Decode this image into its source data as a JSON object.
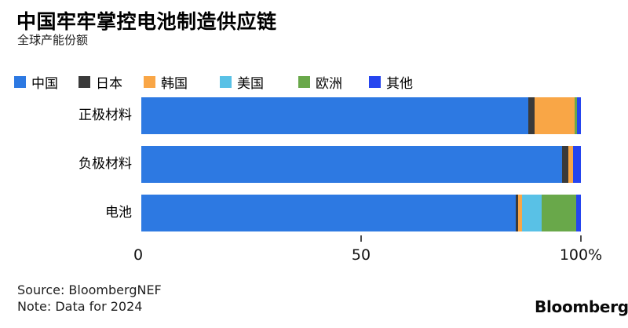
{
  "header": {
    "title": "中国牢牢掌控电池制造供应链",
    "subtitle": "全球产能份额"
  },
  "chart_data": {
    "type": "bar",
    "orientation": "horizontal",
    "stacked": true,
    "title": "中国牢牢掌控电池制造供应链",
    "subtitle": "全球产能份额",
    "categories": [
      "正极材料",
      "负极材料",
      "电池"
    ],
    "series": [
      {
        "name": "中国",
        "color": "#2d79e2",
        "values": [
          88.0,
          95.8,
          85.2
        ]
      },
      {
        "name": "日本",
        "color": "#3a3a3a",
        "values": [
          1.4,
          1.3,
          0.5
        ]
      },
      {
        "name": "韩国",
        "color": "#f9a646",
        "values": [
          9.1,
          1.1,
          0.9
        ]
      },
      {
        "name": "美国",
        "color": "#59c1e6",
        "values": [
          0,
          0,
          4.5
        ]
      },
      {
        "name": "欧洲",
        "color": "#69a84a",
        "values": [
          0.7,
          0,
          7.8
        ]
      },
      {
        "name": "其他",
        "color": "#2545ef",
        "values": [
          0.8,
          1.8,
          1.1
        ]
      }
    ],
    "xlabel": "",
    "ylabel": "",
    "xlim": [
      0,
      100
    ],
    "x_ticks": [
      {
        "value": 0,
        "label": "0",
        "tick_mark": false
      },
      {
        "value": 50,
        "label": "50",
        "tick_mark": true
      },
      {
        "value": 100,
        "label": "100%",
        "tick_mark": true
      }
    ],
    "legend_position": "top",
    "grid": false,
    "unit": "percent"
  },
  "footer": {
    "source": "Source: BloombergNEF",
    "note": "Note: Data for 2024",
    "logo": "Bloomberg"
  }
}
